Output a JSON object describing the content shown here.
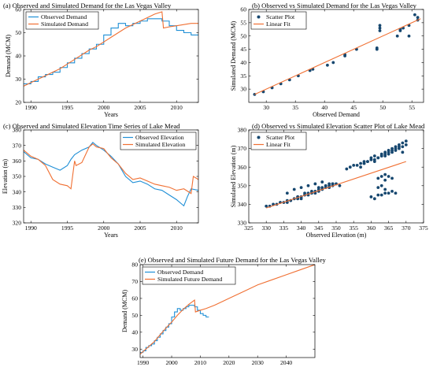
{
  "colors": {
    "blue": "#1f8fd6",
    "orange": "#f07033",
    "dot": "#16476f",
    "axis": "#000000"
  },
  "chart_data": [
    {
      "id": "a",
      "type": "line",
      "title": "(a) Observed and Simulated Demand for the Las Vegas Valley",
      "xlabel": "Years",
      "ylabel": "Demand (MCM)",
      "xlim": [
        1989,
        2013
      ],
      "ylim": [
        20,
        60
      ],
      "xticks": [
        1990,
        1995,
        2000,
        2005,
        2010
      ],
      "yticks": [
        20,
        30,
        40,
        50,
        60
      ],
      "legend": {
        "position": "top-left",
        "entries": [
          "Observed Demand",
          "Simulated Demand"
        ]
      },
      "series": [
        {
          "name": "Observed Demand",
          "color": "blue",
          "step": true,
          "x": [
            1989,
            1990,
            1991,
            1992,
            1993,
            1994,
            1995,
            1996,
            1997,
            1998,
            1999,
            2000,
            2001,
            2002,
            2003,
            2004,
            2005,
            2006,
            2007,
            2008,
            2009,
            2010,
            2011,
            2012,
            2013
          ],
          "y": [
            28,
            29,
            31,
            32,
            33,
            35,
            37,
            39,
            41,
            43,
            45,
            49,
            52,
            54,
            53,
            54,
            55,
            56,
            56,
            55,
            53,
            51,
            50,
            49,
            49
          ]
        },
        {
          "name": "Simulated Demand",
          "color": "orange",
          "x": [
            1989,
            1990,
            1991,
            1992,
            1993,
            1994,
            1995,
            1996,
            1997,
            1998,
            1999,
            2000,
            2001,
            2002,
            2003,
            2004,
            2005,
            2006,
            2007,
            2008,
            2008.2,
            2009,
            2010,
            2011,
            2012,
            2013
          ],
          "y": [
            27,
            28.5,
            30,
            31.5,
            33,
            34.5,
            36.5,
            38.5,
            40.5,
            42.5,
            44,
            46,
            48,
            50,
            52,
            53.5,
            55,
            56.5,
            58,
            59,
            52,
            52.5,
            53,
            53.5,
            54,
            54
          ]
        }
      ]
    },
    {
      "id": "b",
      "type": "scatter",
      "title": "(b) Observed vs Simulated Demand for the Las Vegas Valley",
      "xlabel": "Observed Demand",
      "ylabel": "Simulated Demand (MCM)",
      "xlim": [
        27,
        57
      ],
      "ylim": [
        25,
        60
      ],
      "xticks": [
        30,
        35,
        40,
        45,
        50,
        55
      ],
      "yticks": [
        30,
        35,
        40,
        45,
        50,
        55,
        60
      ],
      "legend": {
        "position": "top-left",
        "entries": [
          "Scatter Plot",
          "Linear Fit"
        ]
      },
      "points": {
        "x": [
          28,
          29.5,
          31,
          32.5,
          34,
          35.5,
          37.5,
          38,
          40.5,
          41.5,
          43.5,
          43.5,
          45.5,
          49,
          49,
          49.5,
          49.5,
          49.5,
          52.5,
          53,
          53,
          53.5,
          54.5,
          54.5,
          55.5,
          56,
          56
        ],
        "y": [
          28,
          29,
          30.5,
          32,
          33.5,
          35,
          37,
          37.5,
          39,
          40,
          43,
          42.5,
          45,
          45,
          45.5,
          52,
          53,
          54,
          50,
          52,
          52.5,
          53,
          50,
          54,
          58,
          57,
          56
        ]
      },
      "fit": {
        "x": [
          28,
          56.5
        ],
        "y": [
          28,
          56.5
        ]
      }
    },
    {
      "id": "c",
      "type": "line",
      "title": "(c) Observed and Simulated Elevation Time Series of Lake Mead",
      "xlabel": "Years",
      "ylabel": "Elevation (m)",
      "xlim": [
        1989,
        2013
      ],
      "ylim": [
        320,
        380
      ],
      "xticks": [
        1990,
        1995,
        2000,
        2005,
        2010
      ],
      "yticks": [
        320,
        330,
        340,
        350,
        360,
        370,
        380
      ],
      "legend": {
        "position": "top-right",
        "entries": [
          "Observed Elevation",
          "Simulated Elevation"
        ]
      },
      "series": [
        {
          "name": "Observed Elevation",
          "color": "blue",
          "x": [
            1989,
            1990,
            1991,
            1992,
            1993,
            1994,
            1995,
            1995.5,
            1996,
            1997,
            1998,
            1998.5,
            1999,
            2000,
            2001,
            2002,
            2003,
            2004,
            2005,
            2006,
            2007,
            2008,
            2009,
            2010,
            2011,
            2011.5,
            2012,
            2013
          ],
          "y": [
            366,
            362,
            361,
            358,
            356,
            354,
            357,
            361,
            364,
            367,
            369,
            372,
            370,
            367,
            363,
            358,
            350,
            346,
            347,
            345,
            342,
            341,
            338,
            335,
            331,
            337,
            342,
            341
          ]
        },
        {
          "name": "Simulated Elevation",
          "color": "orange",
          "x": [
            1989,
            1990,
            1991,
            1992,
            1993,
            1994,
            1995,
            1995.5,
            1996,
            1996.2,
            1997,
            1998,
            1998.5,
            1999,
            2000,
            2001,
            2002,
            2003,
            2004,
            2005,
            2006,
            2007,
            2008,
            2009,
            2010,
            2011,
            2012,
            2012.3,
            2013
          ],
          "y": [
            367,
            363,
            361,
            357,
            348,
            345,
            344,
            342,
            360,
            357,
            359,
            369,
            371,
            369,
            368,
            362,
            358,
            352,
            348,
            349,
            347,
            345,
            344,
            343,
            341,
            342,
            339,
            350,
            348
          ]
        }
      ]
    },
    {
      "id": "d",
      "type": "scatter",
      "title": "(d) Observed vs Simulated Elevation Scatter Plot of Lake Mead",
      "xlabel": "Observed Elevation (m)",
      "ylabel": "Simulated Elevation (m)",
      "xlim": [
        325,
        375
      ],
      "ylim": [
        330,
        380
      ],
      "xticks": [
        325,
        330,
        335,
        340,
        345,
        350,
        355,
        360,
        365,
        370,
        375
      ],
      "yticks": [
        330,
        340,
        350,
        360,
        370,
        380
      ],
      "legend": {
        "position": "top-left",
        "entries": [
          "Scatter Plot",
          "Linear Fit"
        ]
      },
      "points": {
        "x": [
          330,
          331,
          332,
          333,
          334,
          335,
          336,
          336,
          337,
          338,
          339,
          339,
          340,
          340,
          341,
          342,
          342,
          343,
          344,
          344,
          345,
          345,
          346,
          346,
          347,
          348,
          348,
          349,
          349,
          350,
          351,
          336,
          338,
          340,
          342,
          344,
          346,
          348,
          339,
          341,
          343,
          345,
          347,
          349,
          353,
          354,
          355,
          356,
          357,
          358,
          358,
          359,
          360,
          360,
          361,
          361,
          362,
          363,
          363,
          364,
          364,
          365,
          365,
          366,
          366,
          367,
          367,
          368,
          368,
          369,
          369,
          370,
          370,
          357,
          358,
          359,
          360,
          361,
          362,
          363,
          364,
          365,
          366,
          367,
          368,
          360,
          361,
          362,
          363,
          364,
          365,
          366,
          367,
          369,
          362,
          363,
          364,
          364,
          365,
          366,
          362,
          363,
          364
        ],
        "y": [
          339,
          339,
          340,
          340,
          341,
          341,
          342,
          341,
          342,
          343,
          343,
          344,
          344,
          343,
          345,
          345,
          346,
          346,
          347,
          346,
          348,
          347,
          348,
          349,
          349,
          350,
          349,
          350,
          351,
          351,
          350,
          346,
          348,
          349,
          350,
          351,
          352,
          351,
          344,
          346,
          347,
          349,
          350,
          351,
          359,
          360,
          361,
          361,
          362,
          362,
          363,
          363,
          364,
          365,
          364,
          366,
          365,
          366,
          367,
          367,
          368,
          368,
          369,
          369,
          370,
          370,
          371,
          371,
          372,
          371,
          373,
          372,
          374,
          360,
          362,
          363,
          364,
          363,
          365,
          366,
          366,
          367,
          368,
          369,
          370,
          344,
          343,
          345,
          345,
          346,
          346,
          347,
          346,
          368,
          354,
          355,
          356,
          353,
          355,
          354,
          349,
          350,
          348
        ]
      },
      "fit": {
        "x": [
          330,
          370
        ],
        "y": [
          338,
          363
        ]
      }
    },
    {
      "id": "e",
      "type": "line",
      "title": "(e) Observed and Simulated Future Demand for the Las Vegas Valley",
      "xlabel": "Years",
      "ylabel": "Demand (MCM)",
      "xlim": [
        1989,
        2050
      ],
      "ylim": [
        25,
        80
      ],
      "xticks": [
        1990,
        2000,
        2010,
        2020,
        2030,
        2040
      ],
      "yticks": [
        30,
        40,
        50,
        60,
        70,
        80
      ],
      "legend": {
        "position": "top-left",
        "entries": [
          "Observed Demand",
          "Simulated Future Demand"
        ]
      },
      "series": [
        {
          "name": "Observed Demand",
          "color": "blue",
          "step": true,
          "x": [
            1989,
            1990,
            1991,
            1992,
            1993,
            1994,
            1995,
            1996,
            1997,
            1998,
            1999,
            2000,
            2001,
            2002,
            2003,
            2004,
            2005,
            2006,
            2007,
            2008,
            2009,
            2010,
            2011,
            2012,
            2013
          ],
          "y": [
            28,
            29,
            31,
            32,
            33,
            35,
            37,
            39,
            41,
            43,
            45,
            49,
            52,
            54,
            53,
            54,
            55,
            56,
            56,
            55,
            53,
            51,
            50,
            49,
            49
          ]
        },
        {
          "name": "Simulated Future Demand",
          "color": "orange",
          "x": [
            1989,
            1990,
            1992,
            1994,
            1996,
            1998,
            2000,
            2002,
            2004,
            2006,
            2008,
            2008.3,
            2010,
            2012,
            2015,
            2020,
            2025,
            2030,
            2035,
            2040,
            2045,
            2050
          ],
          "y": [
            27,
            28.5,
            31.5,
            34.5,
            38.5,
            42.5,
            46,
            50,
            53.5,
            56.5,
            59,
            52,
            53,
            54,
            56,
            60,
            64,
            68,
            71,
            74,
            77,
            80
          ]
        }
      ]
    }
  ]
}
